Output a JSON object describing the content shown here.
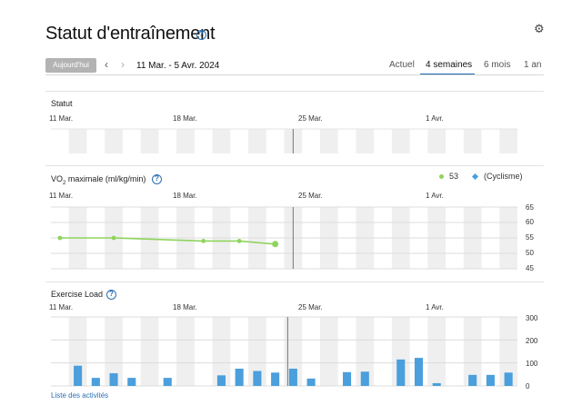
{
  "header": {
    "title": "Statut d'entraînement",
    "help_icon": "help-circle-icon",
    "settings_icon": "gear-icon"
  },
  "toolbar": {
    "today_label": "Aujourd'hui",
    "prev_label": "‹",
    "next_label": "›",
    "date_range": "11 Mar. - 5 Avr. 2024",
    "tabs": [
      {
        "label": "Actuel",
        "active": false
      },
      {
        "label": "4 semaines",
        "active": true
      },
      {
        "label": "6 mois",
        "active": false
      },
      {
        "label": "1 an",
        "active": false
      }
    ]
  },
  "date_ticks": [
    "11 Mar.",
    "18 Mar.",
    "25 Mar.",
    "1 Avr."
  ],
  "status_section": {
    "label": "Statut"
  },
  "vo2_section": {
    "label_prefix": "VO",
    "label_sub": "2",
    "label_suffix": " maximale (ml/kg/min)",
    "legend": [
      {
        "label": "53",
        "color": "#8fd45e"
      },
      {
        "label": "(Cyclisme)",
        "color": "#4a9fdc"
      }
    ]
  },
  "load_section": {
    "label": "Exercise Load"
  },
  "footer": {
    "activities_link": "Liste des activités"
  },
  "chart_data": [
    {
      "type": "line",
      "title": "",
      "ylabel": "",
      "ylim": [
        45,
        65
      ],
      "yticks": [
        45,
        50,
        55,
        60,
        65
      ],
      "xlabel": "",
      "x_range": [
        "2024-03-11",
        "2024-04-05"
      ],
      "series": [
        {
          "name": "53",
          "color": "#8fd45e",
          "points": [
            {
              "x": "2024-03-11",
              "y": 55
            },
            {
              "x": "2024-03-14",
              "y": 55
            },
            {
              "x": "2024-03-19",
              "y": 54
            },
            {
              "x": "2024-03-21",
              "y": 54
            },
            {
              "x": "2024-03-23",
              "y": 53
            }
          ]
        }
      ],
      "today_marker": "2024-03-24"
    },
    {
      "type": "bar",
      "title": "",
      "ylabel": "",
      "ylim": [
        0,
        300
      ],
      "yticks": [
        0,
        100,
        200,
        300
      ],
      "xlabel": "",
      "x_range": [
        "2024-03-11",
        "2024-04-05"
      ],
      "color": "#4a9fdc",
      "points": [
        {
          "x": "2024-03-12",
          "y": 88
        },
        {
          "x": "2024-03-13",
          "y": 35
        },
        {
          "x": "2024-03-14",
          "y": 55
        },
        {
          "x": "2024-03-15",
          "y": 35
        },
        {
          "x": "2024-03-17",
          "y": 35
        },
        {
          "x": "2024-03-20",
          "y": 46
        },
        {
          "x": "2024-03-21",
          "y": 75
        },
        {
          "x": "2024-03-22",
          "y": 65
        },
        {
          "x": "2024-03-23",
          "y": 58
        },
        {
          "x": "2024-03-24",
          "y": 75
        },
        {
          "x": "2024-03-25",
          "y": 32
        },
        {
          "x": "2024-03-27",
          "y": 60
        },
        {
          "x": "2024-03-28",
          "y": 62
        },
        {
          "x": "2024-03-30",
          "y": 115
        },
        {
          "x": "2024-03-31",
          "y": 122
        },
        {
          "x": "2024-04-01",
          "y": 12
        },
        {
          "x": "2024-04-03",
          "y": 48
        },
        {
          "x": "2024-04-04",
          "y": 48
        },
        {
          "x": "2024-04-05",
          "y": 58
        }
      ],
      "today_marker": "2024-03-24"
    }
  ]
}
